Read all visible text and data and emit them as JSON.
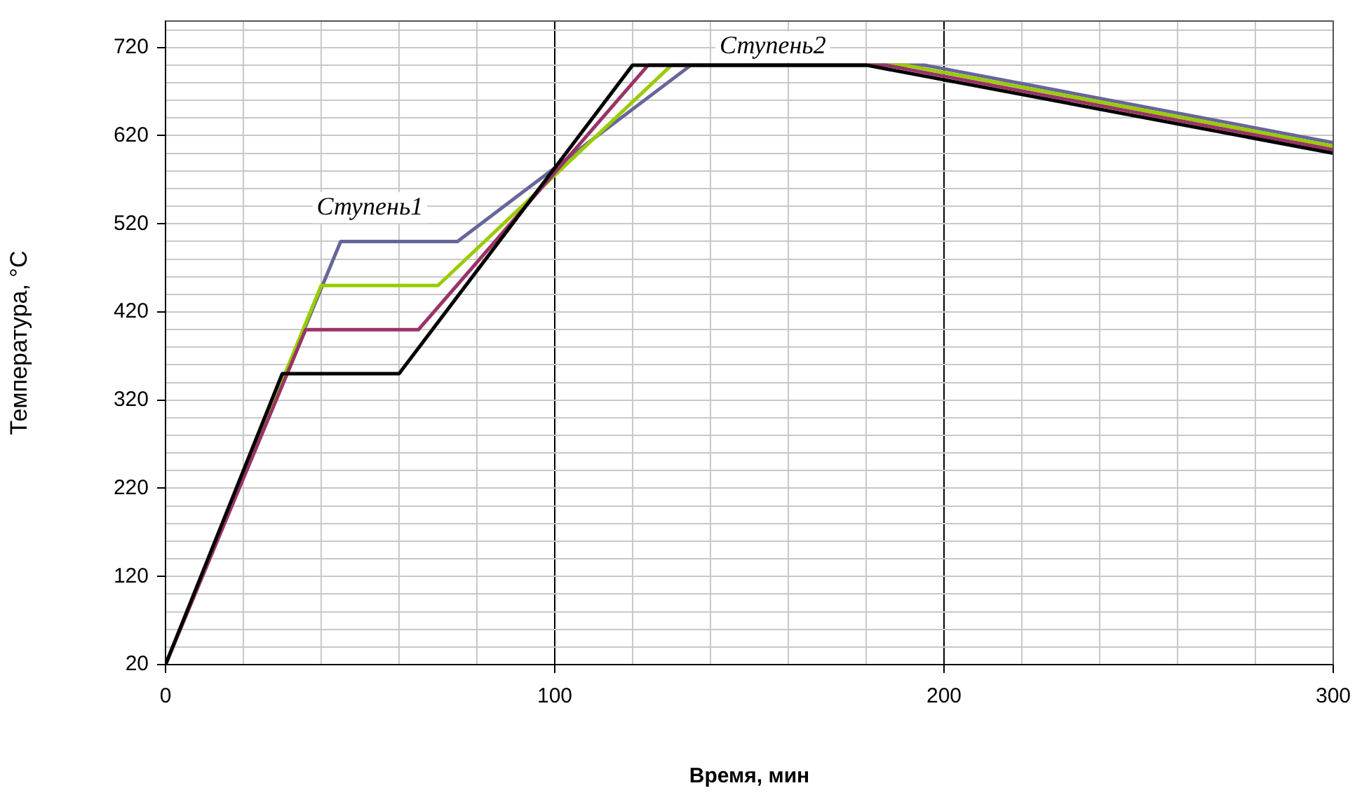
{
  "chart_data": {
    "type": "line",
    "xlabel": "Время, мин",
    "ylabel": "Температура, °С",
    "xlim": [
      0,
      300
    ],
    "ylim": [
      20,
      750
    ],
    "xticks": [
      0,
      {
        "value": 20,
        "label": null
      },
      {
        "value": 40,
        "label": null
      },
      {
        "value": 60,
        "label": null
      },
      {
        "value": 80,
        "label": null
      },
      100,
      {
        "value": 120,
        "label": null
      },
      {
        "value": 140,
        "label": null
      },
      {
        "value": 160,
        "label": null
      },
      {
        "value": 180,
        "label": null
      },
      200,
      {
        "value": 220,
        "label": null
      },
      {
        "value": 240,
        "label": null
      },
      {
        "value": 260,
        "label": null
      },
      {
        "value": 280,
        "label": null
      },
      300
    ],
    "yticks": [
      20,
      {
        "value": 40,
        "label": null
      },
      {
        "value": 60,
        "label": null
      },
      {
        "value": 80,
        "label": null
      },
      {
        "value": 100,
        "label": null
      },
      120,
      {
        "value": 140,
        "label": null
      },
      {
        "value": 160,
        "label": null
      },
      {
        "value": 180,
        "label": null
      },
      {
        "value": 200,
        "label": null
      },
      220,
      {
        "value": 240,
        "label": null
      },
      {
        "value": 260,
        "label": null
      },
      {
        "value": 280,
        "label": null
      },
      {
        "value": 300,
        "label": null
      },
      320,
      {
        "value": 340,
        "label": null
      },
      {
        "value": 360,
        "label": null
      },
      {
        "value": 380,
        "label": null
      },
      {
        "value": 400,
        "label": null
      },
      420,
      {
        "value": 440,
        "label": null
      },
      {
        "value": 460,
        "label": null
      },
      {
        "value": 480,
        "label": null
      },
      {
        "value": 500,
        "label": null
      },
      520,
      {
        "value": 540,
        "label": null
      },
      {
        "value": 560,
        "label": null
      },
      {
        "value": 580,
        "label": null
      },
      {
        "value": 600,
        "label": null
      },
      620,
      {
        "value": 640,
        "label": null
      },
      {
        "value": 660,
        "label": null
      },
      {
        "value": 680,
        "label": null
      },
      {
        "value": 700,
        "label": null
      },
      720,
      {
        "value": 740,
        "label": null
      }
    ],
    "grid": true,
    "legend": false,
    "marker": "none",
    "line_style": "solid",
    "series": [
      {
        "color": "#000000",
        "x": [
          0,
          30,
          60,
          120,
          180,
          300
        ],
        "values": [
          20,
          350,
          350,
          700,
          700,
          600
        ]
      },
      {
        "color": "#993366",
        "x": [
          0,
          36,
          65,
          124,
          185,
          300
        ],
        "values": [
          20,
          400,
          400,
          700,
          700,
          604
        ]
      },
      {
        "color": "#99cc00",
        "x": [
          0,
          40,
          70,
          130,
          190,
          300
        ],
        "values": [
          20,
          450,
          450,
          700,
          700,
          608
        ]
      },
      {
        "color": "#666699",
        "x": [
          0,
          45,
          75,
          135,
          195,
          300
        ],
        "values": [
          20,
          500,
          500,
          700,
          700,
          612
        ]
      }
    ],
    "annotations": [
      "Ступень1",
      "Ступень2"
    ]
  }
}
